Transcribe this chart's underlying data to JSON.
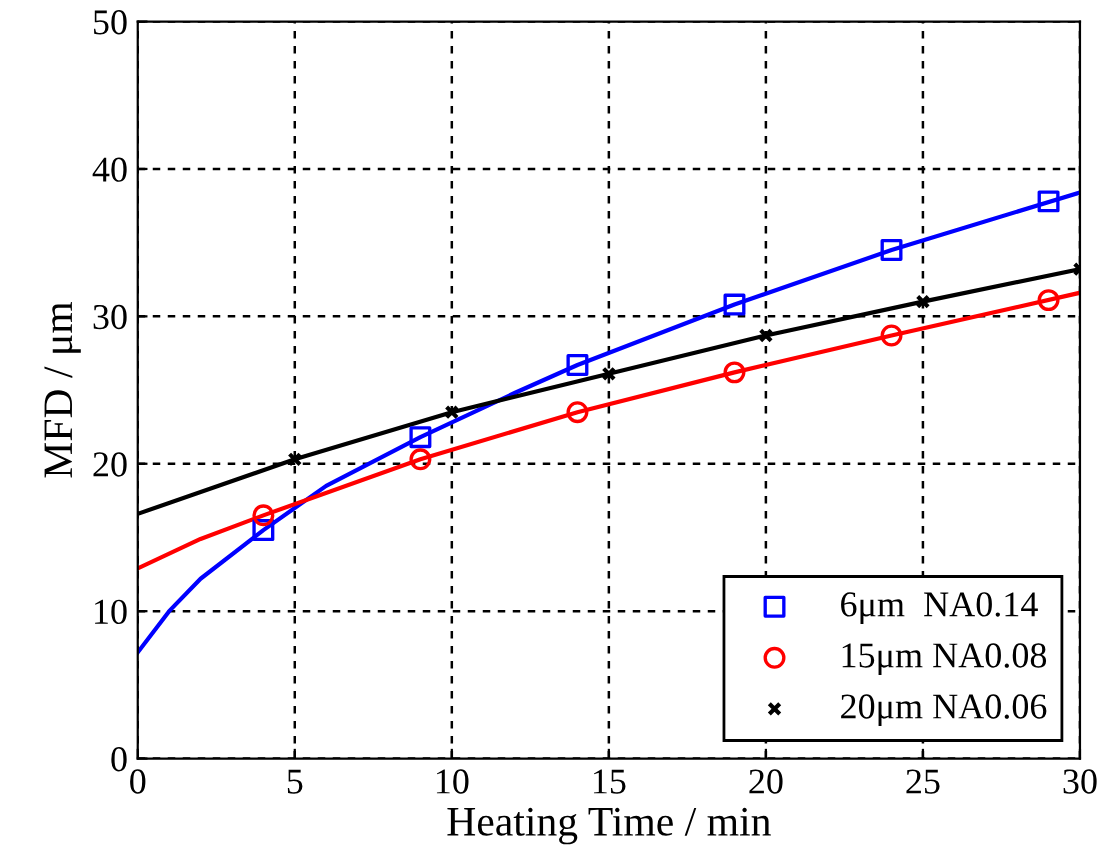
{
  "chart_data": {
    "type": "scatter",
    "xlabel": "Heating Time / min",
    "ylabel": "MFD / μm",
    "xlim": [
      0,
      30
    ],
    "ylim": [
      0,
      50
    ],
    "xticks": [
      0,
      5,
      10,
      15,
      20,
      25,
      30
    ],
    "yticks": [
      0,
      10,
      20,
      30,
      40,
      50
    ],
    "grid": true,
    "legend": "bottom right",
    "series": [
      {
        "type": "line",
        "color": "#0000ff",
        "x": [
          0,
          1,
          2,
          4,
          6,
          9,
          12,
          14,
          19,
          24,
          30
        ],
        "values": [
          7.2,
          10,
          12.2,
          15.5,
          18.5,
          21.8,
          24.8,
          26.7,
          30.8,
          34.5,
          38.4
        ]
      },
      {
        "type": "line",
        "color": "#ff0000",
        "x": [
          0,
          2,
          4,
          9,
          14,
          19,
          24,
          30
        ],
        "values": [
          12.9,
          14.9,
          16.5,
          20.3,
          23.5,
          26.2,
          28.7,
          31.6
        ]
      },
      {
        "type": "line",
        "color": "#000000",
        "x": [
          0,
          5,
          10,
          15,
          20,
          25,
          30
        ],
        "values": [
          16.6,
          20.3,
          23.5,
          26.1,
          28.7,
          31.0,
          33.2
        ]
      },
      {
        "name": "6μm  NA0.14",
        "color": "#0000ff",
        "marker": "square",
        "x": [
          4,
          9,
          14,
          19,
          24,
          29
        ],
        "values": [
          15.5,
          21.8,
          26.7,
          30.8,
          34.5,
          37.8
        ]
      },
      {
        "name": "15μm NA0.08",
        "color": "#ff0000",
        "marker": "circle",
        "x": [
          4,
          9,
          14,
          19,
          24,
          29
        ],
        "values": [
          16.5,
          20.3,
          23.5,
          26.2,
          28.7,
          31.1
        ]
      },
      {
        "name": "20μm NA0.06",
        "color": "#000000",
        "marker": "cross",
        "x": [
          5,
          10,
          15,
          20,
          25,
          30
        ],
        "values": [
          20.3,
          23.5,
          26.1,
          28.7,
          31.0,
          33.2
        ]
      }
    ]
  }
}
